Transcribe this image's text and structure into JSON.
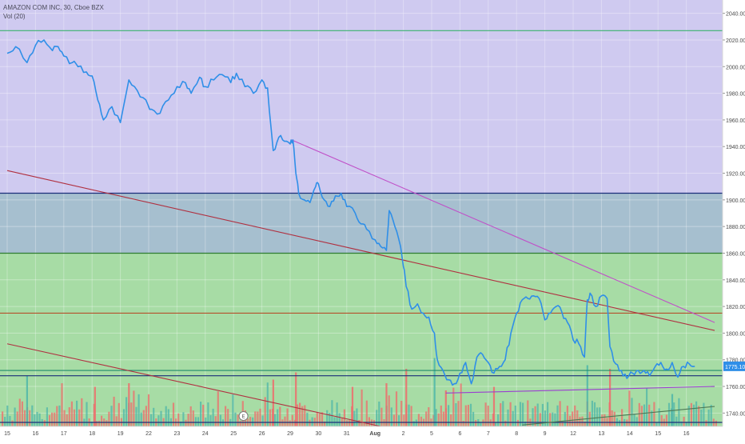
{
  "legend": {
    "symbol_line": "AMAZON COM INC, 30, Cboe BZX",
    "volume_line": "Vol (20)"
  },
  "price_scale": {
    "ticks": [
      "2040.00",
      "2020.00",
      "2000.00",
      "1980.00",
      "1960.00",
      "1940.00",
      "1920.00",
      "1900.00",
      "1880.00",
      "1860.00",
      "1840.00",
      "1820.00",
      "1800.00",
      "1780.00",
      "1760.00",
      "1740.00"
    ],
    "current_price_label": "1775.10"
  },
  "time_scale": {
    "ticks": [
      "15",
      "16",
      "17",
      "18",
      "19",
      "22",
      "23",
      "24",
      "25",
      "26",
      "29",
      "30",
      "31",
      "Aug",
      "2",
      "5",
      "6",
      "7",
      "8",
      "9",
      "12",
      "13",
      "14",
      "15",
      "16"
    ]
  },
  "earnings_marker": {
    "label": "E"
  },
  "chart_data": {
    "type": "line",
    "title": "AMAZON COM INC, 30, Cboe BZX",
    "indicator": "Vol (20)",
    "ylim": [
      1730,
      2050
    ],
    "current_price": 1775.1,
    "colors": {
      "price_line": "#2f8fe8",
      "upper_zone": "#cfcaf0",
      "middle_zone": "#a6bfcf",
      "lower_zone": "#a7dca5",
      "volume_up": "#4db6a9",
      "volume_down": "#ef6b6b"
    },
    "zones": [
      {
        "from": 1905,
        "to": 2050,
        "color": "#cfcaf0"
      },
      {
        "from": 1860,
        "to": 1905,
        "color": "#a6bfcf"
      },
      {
        "from": 1730,
        "to": 1860,
        "color": "#a7dca5"
      }
    ],
    "horizontal_levels": [
      {
        "value": 2027,
        "color": "#3cb371"
      },
      {
        "value": 1905,
        "color": "#1b2e7a"
      },
      {
        "value": 1860,
        "color": "#2e7d32"
      },
      {
        "value": 1815,
        "color": "#b5512c"
      },
      {
        "value": 1772,
        "color": "#1f8a6a"
      },
      {
        "value": 1768,
        "color": "#1b2e7a"
      },
      {
        "value": 1733,
        "color": "#1b2e7a"
      }
    ],
    "trendlines": [
      {
        "from": [
          0,
          1922
        ],
        "to": [
          25,
          1802
        ],
        "color": "#b03040"
      },
      {
        "from": [
          10.05,
          1945
        ],
        "to": [
          25,
          1808
        ],
        "color": "#c050c8"
      },
      {
        "from": [
          0,
          1792
        ],
        "to": [
          13.2,
          1730
        ],
        "color": "#b03040"
      },
      {
        "from": [
          15.5,
          1755
        ],
        "to": [
          25,
          1760
        ],
        "color": "#9b3fd0"
      },
      {
        "from": [
          18.2,
          1731
        ],
        "to": [
          25,
          1745
        ],
        "color": "#4d7a56"
      }
    ],
    "price_anchors": [
      [
        0,
        2010
      ],
      [
        0.3,
        2015
      ],
      [
        0.7,
        2003
      ],
      [
        1,
        2016
      ],
      [
        1.3,
        2020
      ],
      [
        1.6,
        2012
      ],
      [
        1.8,
        2015
      ],
      [
        2,
        2008
      ],
      [
        2.3,
        2003
      ],
      [
        2.5,
        2000
      ],
      [
        2.8,
        1996
      ],
      [
        3,
        1993
      ],
      [
        3.2,
        1975
      ],
      [
        3.4,
        1960
      ],
      [
        3.7,
        1970
      ],
      [
        4,
        1958
      ],
      [
        4.3,
        1990
      ],
      [
        4.6,
        1982
      ],
      [
        4.9,
        1975
      ],
      [
        5.1,
        1968
      ],
      [
        5.4,
        1965
      ],
      [
        5.7,
        1975
      ],
      [
        6,
        1985
      ],
      [
        6.3,
        1988
      ],
      [
        6.5,
        1980
      ],
      [
        6.8,
        1992
      ],
      [
        7,
        1985
      ],
      [
        7.3,
        1990
      ],
      [
        7.6,
        1994
      ],
      [
        7.9,
        1988
      ],
      [
        8.1,
        1995
      ],
      [
        8.4,
        1985
      ],
      [
        8.7,
        1980
      ],
      [
        9,
        1990
      ],
      [
        9.2,
        1984
      ],
      [
        9.4,
        1937
      ],
      [
        9.6,
        1947
      ],
      [
        9.8,
        1944
      ],
      [
        10,
        1942
      ],
      [
        10.1,
        1945
      ],
      [
        10.2,
        1920
      ],
      [
        10.3,
        1905
      ],
      [
        10.5,
        1900
      ],
      [
        10.7,
        1898
      ],
      [
        10.9,
        1910
      ],
      [
        11,
        1912
      ],
      [
        11.2,
        1900
      ],
      [
        11.4,
        1895
      ],
      [
        11.6,
        1903
      ],
      [
        11.8,
        1905
      ],
      [
        12,
        1895
      ],
      [
        12.3,
        1890
      ],
      [
        12.5,
        1882
      ],
      [
        12.7,
        1878
      ],
      [
        13,
        1870
      ],
      [
        13.2,
        1865
      ],
      [
        13.4,
        1862
      ],
      [
        13.5,
        1892
      ],
      [
        13.7,
        1880
      ],
      [
        13.9,
        1865
      ],
      [
        14,
        1850
      ],
      [
        14.1,
        1835
      ],
      [
        14.3,
        1818
      ],
      [
        14.5,
        1822
      ],
      [
        14.7,
        1815
      ],
      [
        14.9,
        1812
      ],
      [
        15.1,
        1800
      ],
      [
        15.2,
        1780
      ],
      [
        15.4,
        1772
      ],
      [
        15.6,
        1765
      ],
      [
        15.8,
        1762
      ],
      [
        16,
        1770
      ],
      [
        16.2,
        1778
      ],
      [
        16.4,
        1762
      ],
      [
        16.6,
        1782
      ],
      [
        16.8,
        1784
      ],
      [
        17,
        1778
      ],
      [
        17.2,
        1770
      ],
      [
        17.4,
        1775
      ],
      [
        17.6,
        1780
      ],
      [
        17.8,
        1800
      ],
      [
        18,
        1815
      ],
      [
        18.2,
        1825
      ],
      [
        18.4,
        1826
      ],
      [
        18.6,
        1828
      ],
      [
        18.8,
        1826
      ],
      [
        19,
        1810
      ],
      [
        19.2,
        1815
      ],
      [
        19.4,
        1820
      ],
      [
        19.6,
        1816
      ],
      [
        19.8,
        1808
      ],
      [
        20,
        1795
      ],
      [
        20.2,
        1792
      ],
      [
        20.4,
        1782
      ],
      [
        20.5,
        1825
      ],
      [
        20.6,
        1830
      ],
      [
        20.8,
        1820
      ],
      [
        21,
        1828
      ],
      [
        21.2,
        1826
      ],
      [
        21.3,
        1790
      ],
      [
        21.5,
        1777
      ],
      [
        21.7,
        1772
      ],
      [
        21.9,
        1766
      ],
      [
        22.1,
        1770
      ],
      [
        22.3,
        1772
      ],
      [
        22.5,
        1772
      ],
      [
        22.7,
        1768
      ],
      [
        22.9,
        1775
      ],
      [
        23.1,
        1778
      ],
      [
        23.3,
        1773
      ],
      [
        23.5,
        1778
      ],
      [
        23.7,
        1767
      ],
      [
        23.9,
        1775
      ],
      [
        24.1,
        1777
      ],
      [
        24.3,
        1775.1
      ]
    ],
    "volume_max": 100,
    "volume_anchors": [
      {
        "x": 0.7,
        "value": 70,
        "direction": "up"
      },
      {
        "x": 3.1,
        "value": 55,
        "direction": "down"
      },
      {
        "x": 4.3,
        "value": 60,
        "direction": "down"
      },
      {
        "x": 9.4,
        "value": 65,
        "direction": "down"
      },
      {
        "x": 10.2,
        "value": 75,
        "direction": "down"
      },
      {
        "x": 12.2,
        "value": 55,
        "direction": "down"
      },
      {
        "x": 13.4,
        "value": 60,
        "direction": "down"
      },
      {
        "x": 14.1,
        "value": 80,
        "direction": "down"
      },
      {
        "x": 15.1,
        "value": 95,
        "direction": "up"
      },
      {
        "x": 15.5,
        "value": 50,
        "direction": "down"
      },
      {
        "x": 17.2,
        "value": 55,
        "direction": "down"
      },
      {
        "x": 20.5,
        "value": 85,
        "direction": "up"
      },
      {
        "x": 21.3,
        "value": 80,
        "direction": "down"
      },
      {
        "x": 23.5,
        "value": 45,
        "direction": "up"
      }
    ]
  }
}
